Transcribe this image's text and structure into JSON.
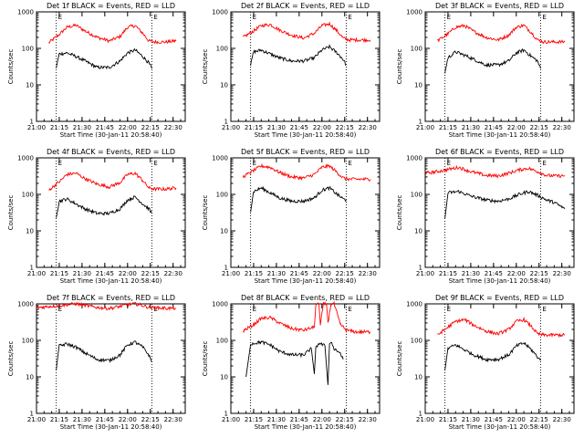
{
  "colors": {
    "events": "#000000",
    "lld": "#ff0000",
    "axis": "#000000"
  },
  "chart_data": [
    {
      "type": "line",
      "title": "Det 1f BLACK = Events, RED = LLD",
      "xlabel": "Start Time (30-Jan-11 20:58:40)",
      "ylabel": "Counts/sec",
      "x_ticks": [
        "21:00",
        "21:15",
        "21:30",
        "21:45",
        "22:00",
        "22:15",
        "22:30"
      ],
      "y_ticks": [
        "1",
        "10",
        "100",
        "1000"
      ],
      "xlim": [
        "21:00",
        "22:38"
      ],
      "ylim": [
        1,
        1000
      ],
      "y_scale": "log",
      "markers": {
        "top_labels": [
          "E",
          "E"
        ],
        "dotted_lines": [
          "21:13",
          "22:16"
        ]
      },
      "series": [
        {
          "color": "#ff0000",
          "x": [
            "21:08",
            "21:15",
            "21:20",
            "21:26",
            "21:32",
            "21:40",
            "21:48",
            "21:55",
            "22:00",
            "22:05",
            "22:10",
            "22:14",
            "22:18",
            "22:25",
            "22:32"
          ],
          "y": [
            140,
            240,
            380,
            430,
            300,
            200,
            160,
            210,
            380,
            420,
            260,
            160,
            150,
            150,
            160
          ]
        },
        {
          "color": "#000000",
          "x": [
            "21:13",
            "21:15",
            "21:20",
            "21:26",
            "21:32",
            "21:40",
            "21:48",
            "21:55",
            "22:00",
            "22:05",
            "22:10",
            "22:14",
            "22:16"
          ],
          "y": [
            30,
            70,
            75,
            60,
            45,
            30,
            30,
            45,
            75,
            90,
            60,
            40,
            28
          ]
        }
      ]
    },
    {
      "type": "line",
      "title": "Det 2f BLACK = Events, RED = LLD",
      "xlabel": "Start Time (30-Jan-11 20:58:40)",
      "ylabel": "Counts/sec",
      "x_ticks": [
        "21:00",
        "21:15",
        "21:30",
        "21:45",
        "22:00",
        "22:15",
        "22:30"
      ],
      "y_ticks": [
        "1",
        "10",
        "100",
        "1000"
      ],
      "xlim": [
        "21:00",
        "22:38"
      ],
      "ylim": [
        1,
        1000
      ],
      "y_scale": "log",
      "markers": {
        "top_labels": [
          "E",
          "E"
        ],
        "dotted_lines": [
          "21:13",
          "22:16"
        ]
      },
      "series": [
        {
          "color": "#ff0000",
          "x": [
            "21:08",
            "21:15",
            "21:20",
            "21:26",
            "21:32",
            "21:40",
            "21:48",
            "21:55",
            "22:00",
            "22:05",
            "22:10",
            "22:14",
            "22:18",
            "22:25",
            "22:32"
          ],
          "y": [
            200,
            300,
            420,
            450,
            320,
            230,
            190,
            260,
            420,
            470,
            300,
            190,
            170,
            170,
            170
          ]
        },
        {
          "color": "#000000",
          "x": [
            "21:13",
            "21:15",
            "21:20",
            "21:26",
            "21:32",
            "21:40",
            "21:48",
            "21:55",
            "22:00",
            "22:05",
            "22:10",
            "22:14",
            "22:16"
          ],
          "y": [
            35,
            80,
            90,
            70,
            55,
            45,
            45,
            55,
            90,
            110,
            75,
            50,
            35
          ]
        }
      ]
    },
    {
      "type": "line",
      "title": "Det 3f BLACK = Events, RED = LLD",
      "xlabel": "Start Time (30-Jan-11 20:58:40)",
      "ylabel": "Counts/sec",
      "x_ticks": [
        "21:00",
        "21:15",
        "21:30",
        "21:45",
        "22:00",
        "22:15",
        "22:30"
      ],
      "y_ticks": [
        "1",
        "10",
        "100",
        "1000"
      ],
      "xlim": [
        "21:00",
        "22:38"
      ],
      "ylim": [
        1,
        1000
      ],
      "y_scale": "log",
      "markers": {
        "top_labels": [
          "E",
          "E"
        ],
        "dotted_lines": [
          "21:13",
          "22:16"
        ]
      },
      "series": [
        {
          "color": "#ff0000",
          "x": [
            "21:08",
            "21:15",
            "21:20",
            "21:26",
            "21:32",
            "21:40",
            "21:48",
            "21:55",
            "22:00",
            "22:05",
            "22:10",
            "22:14",
            "22:18",
            "22:25",
            "22:32"
          ],
          "y": [
            160,
            250,
            380,
            420,
            290,
            200,
            170,
            230,
            380,
            430,
            270,
            170,
            150,
            150,
            150
          ]
        },
        {
          "color": "#000000",
          "x": [
            "21:13",
            "21:15",
            "21:20",
            "21:26",
            "21:32",
            "21:40",
            "21:48",
            "21:55",
            "22:00",
            "22:05",
            "22:10",
            "22:14",
            "22:16"
          ],
          "y": [
            22,
            55,
            80,
            65,
            50,
            35,
            35,
            45,
            75,
            90,
            60,
            45,
            28
          ]
        }
      ]
    },
    {
      "type": "line",
      "title": "Det 4f BLACK = Events, RED = LLD",
      "xlabel": "Start Time (30-Jan-11 20:58:40)",
      "ylabel": "Counts/sec",
      "x_ticks": [
        "21:00",
        "21:15",
        "21:30",
        "21:45",
        "22:00",
        "22:15",
        "22:30"
      ],
      "y_ticks": [
        "1",
        "10",
        "100",
        "1000"
      ],
      "xlim": [
        "21:00",
        "22:38"
      ],
      "ylim": [
        1,
        1000
      ],
      "y_scale": "log",
      "markers": {
        "top_labels": [
          "E",
          "E"
        ],
        "dotted_lines": [
          "21:13",
          "22:16"
        ]
      },
      "series": [
        {
          "color": "#ff0000",
          "x": [
            "21:08",
            "21:15",
            "21:20",
            "21:26",
            "21:32",
            "21:40",
            "21:48",
            "21:55",
            "22:00",
            "22:05",
            "22:10",
            "22:14",
            "22:18",
            "22:25",
            "22:32"
          ],
          "y": [
            130,
            220,
            350,
            380,
            270,
            190,
            160,
            210,
            350,
            380,
            240,
            150,
            140,
            140,
            150
          ]
        },
        {
          "color": "#000000",
          "x": [
            "21:13",
            "21:15",
            "21:20",
            "21:26",
            "21:32",
            "21:40",
            "21:48",
            "21:55",
            "22:00",
            "22:05",
            "22:10",
            "22:14",
            "22:16"
          ],
          "y": [
            25,
            65,
            75,
            55,
            40,
            30,
            30,
            40,
            70,
            85,
            55,
            40,
            30
          ]
        }
      ]
    },
    {
      "type": "line",
      "title": "Det 5f BLACK = Events, RED = LLD",
      "xlabel": "Start Time (30-Jan-11 20:58:40)",
      "ylabel": "Counts/sec",
      "x_ticks": [
        "21:00",
        "21:15",
        "21:30",
        "21:45",
        "22:00",
        "22:15",
        "22:30"
      ],
      "y_ticks": [
        "1",
        "10",
        "100",
        "1000"
      ],
      "xlim": [
        "21:00",
        "22:38"
      ],
      "ylim": [
        1,
        1000
      ],
      "y_scale": "log",
      "markers": {
        "top_labels": [
          "E",
          "E"
        ],
        "dotted_lines": [
          "21:13",
          "22:16"
        ]
      },
      "series": [
        {
          "color": "#ff0000",
          "x": [
            "21:08",
            "21:15",
            "21:20",
            "21:26",
            "21:32",
            "21:40",
            "21:48",
            "21:55",
            "22:00",
            "22:05",
            "22:10",
            "22:14",
            "22:18",
            "22:25",
            "22:32"
          ],
          "y": [
            300,
            450,
            600,
            550,
            400,
            300,
            280,
            350,
            550,
            600,
            400,
            280,
            260,
            260,
            260
          ]
        },
        {
          "color": "#000000",
          "x": [
            "21:13",
            "21:15",
            "21:20",
            "21:26",
            "21:32",
            "21:40",
            "21:48",
            "21:55",
            "22:00",
            "22:05",
            "22:10",
            "22:14",
            "22:16"
          ],
          "y": [
            35,
            120,
            150,
            110,
            80,
            65,
            65,
            80,
            130,
            150,
            100,
            75,
            70
          ]
        }
      ]
    },
    {
      "type": "line",
      "title": "Det 6f BLACK = Events, RED = LLD",
      "xlabel": "Start Time (30-Jan-11 20:58:40)",
      "ylabel": "Counts/sec",
      "x_ticks": [
        "21:00",
        "21:15",
        "21:30",
        "21:45",
        "22:00",
        "22:15",
        "22:30"
      ],
      "y_ticks": [
        "1",
        "10",
        "100",
        "1000"
      ],
      "xlim": [
        "21:00",
        "22:38"
      ],
      "ylim": [
        1,
        1000
      ],
      "y_scale": "log",
      "markers": {
        "top_labels": [
          "E",
          "E"
        ],
        "dotted_lines": [
          "21:13",
          "22:16"
        ]
      },
      "series": [
        {
          "color": "#ff0000",
          "x": [
            "21:00",
            "21:08",
            "21:15",
            "21:22",
            "21:30",
            "21:40",
            "21:48",
            "21:55",
            "22:02",
            "22:08",
            "22:14",
            "22:20",
            "22:25",
            "22:32"
          ],
          "y": [
            380,
            420,
            480,
            550,
            420,
            330,
            320,
            380,
            470,
            520,
            420,
            330,
            320,
            320
          ]
        },
        {
          "color": "#000000",
          "x": [
            "21:13",
            "21:15",
            "21:22",
            "21:30",
            "21:40",
            "21:48",
            "21:55",
            "22:02",
            "22:08",
            "22:14",
            "22:20",
            "22:25",
            "22:32"
          ],
          "y": [
            22,
            110,
            120,
            90,
            70,
            65,
            75,
            100,
            120,
            95,
            70,
            60,
            40
          ]
        }
      ]
    },
    {
      "type": "line",
      "title": "Det 7f BLACK = Events, RED = LLD",
      "xlabel": "Start Time (30-Jan-11 20:58:40)",
      "ylabel": "Counts/sec",
      "x_ticks": [
        "21:00",
        "21:15",
        "21:30",
        "21:45",
        "22:00",
        "22:15",
        "22:30"
      ],
      "y_ticks": [
        "1",
        "10",
        "100",
        "1000"
      ],
      "xlim": [
        "21:00",
        "22:38"
      ],
      "ylim": [
        1,
        1000
      ],
      "y_scale": "log",
      "markers": {
        "top_labels": [
          "E",
          "E"
        ],
        "dotted_lines": [
          "21:13",
          "22:16"
        ]
      },
      "series": [
        {
          "color": "#ff0000",
          "x": [
            "21:00",
            "21:08",
            "21:15",
            "21:20",
            "21:26",
            "21:32",
            "21:40",
            "21:48",
            "21:55",
            "22:00",
            "22:05",
            "22:10",
            "22:14",
            "22:20",
            "22:25",
            "22:32"
          ],
          "y": [
            780,
            850,
            900,
            950,
            1000,
            900,
            800,
            750,
            850,
            950,
            1000,
            900,
            800,
            780,
            760,
            760
          ]
        },
        {
          "color": "#000000",
          "x": [
            "21:13",
            "21:15",
            "21:20",
            "21:26",
            "21:32",
            "21:40",
            "21:48",
            "21:55",
            "22:00",
            "22:05",
            "22:10",
            "22:14",
            "22:16"
          ],
          "y": [
            15,
            70,
            80,
            65,
            45,
            30,
            28,
            40,
            75,
            90,
            65,
            40,
            25
          ]
        }
      ]
    },
    {
      "type": "line",
      "title": "Det 8f BLACK = Events, RED = LLD",
      "xlabel": "Start Time (30-Jan-11 20:58:40)",
      "ylabel": "Counts/sec",
      "x_ticks": [
        "21:00",
        "21:15",
        "21:30",
        "21:45",
        "22:00",
        "22:15",
        "22:30"
      ],
      "y_ticks": [
        "1",
        "10",
        "100",
        "1000"
      ],
      "xlim": [
        "21:00",
        "22:38"
      ],
      "ylim": [
        1,
        1000
      ],
      "y_scale": "log",
      "markers": {
        "top_labels": [
          "E",
          "E"
        ],
        "dotted_lines": [
          "21:13",
          "22:16"
        ]
      },
      "series": [
        {
          "color": "#ff0000",
          "x": [
            "21:08",
            "21:15",
            "21:20",
            "21:26",
            "21:32",
            "21:40",
            "21:48",
            "21:55",
            "21:56",
            "21:58",
            "21:59",
            "22:01",
            "22:03",
            "22:04",
            "22:06",
            "22:08",
            "22:12",
            "22:16",
            "22:22",
            "22:32"
          ],
          "y": [
            180,
            270,
            400,
            420,
            300,
            210,
            190,
            230,
            1000,
            1000,
            260,
            1000,
            1000,
            300,
            1000,
            1000,
            280,
            190,
            170,
            170
          ]
        },
        {
          "color": "#000000",
          "x": [
            "21:10",
            "21:13",
            "21:20",
            "21:26",
            "21:32",
            "21:40",
            "21:48",
            "21:53",
            "21:55",
            "21:56",
            "21:58",
            "22:02",
            "22:04",
            "22:05",
            "22:06",
            "22:08",
            "22:12",
            "22:14"
          ],
          "y": [
            10,
            80,
            90,
            75,
            50,
            40,
            40,
            60,
            12,
            60,
            85,
            70,
            6,
            80,
            95,
            60,
            45,
            30
          ]
        }
      ]
    },
    {
      "type": "line",
      "title": "Det 9f BLACK = Events, RED = LLD",
      "xlabel": "Start Time (30-Jan-11 20:58:40)",
      "ylabel": "Counts/sec",
      "x_ticks": [
        "21:00",
        "21:15",
        "21:30",
        "21:45",
        "22:00",
        "22:15",
        "22:30"
      ],
      "y_ticks": [
        "1",
        "10",
        "100",
        "1000"
      ],
      "xlim": [
        "21:00",
        "22:38"
      ],
      "ylim": [
        1,
        1000
      ],
      "y_scale": "log",
      "markers": {
        "top_labels": [
          "E",
          "E"
        ],
        "dotted_lines": [
          "21:13",
          "22:16"
        ]
      },
      "series": [
        {
          "color": "#ff0000",
          "x": [
            "21:08",
            "21:15",
            "21:20",
            "21:26",
            "21:32",
            "21:40",
            "21:48",
            "21:55",
            "22:00",
            "22:05",
            "22:10",
            "22:14",
            "22:18",
            "22:25",
            "22:32"
          ],
          "y": [
            140,
            230,
            330,
            370,
            260,
            180,
            150,
            200,
            330,
            370,
            240,
            150,
            140,
            140,
            140
          ]
        },
        {
          "color": "#000000",
          "x": [
            "21:13",
            "21:15",
            "21:20",
            "21:26",
            "21:32",
            "21:40",
            "21:48",
            "21:55",
            "22:00",
            "22:05",
            "22:10",
            "22:14",
            "22:16"
          ],
          "y": [
            15,
            60,
            75,
            55,
            40,
            30,
            30,
            40,
            70,
            85,
            55,
            35,
            28
          ]
        }
      ]
    }
  ]
}
